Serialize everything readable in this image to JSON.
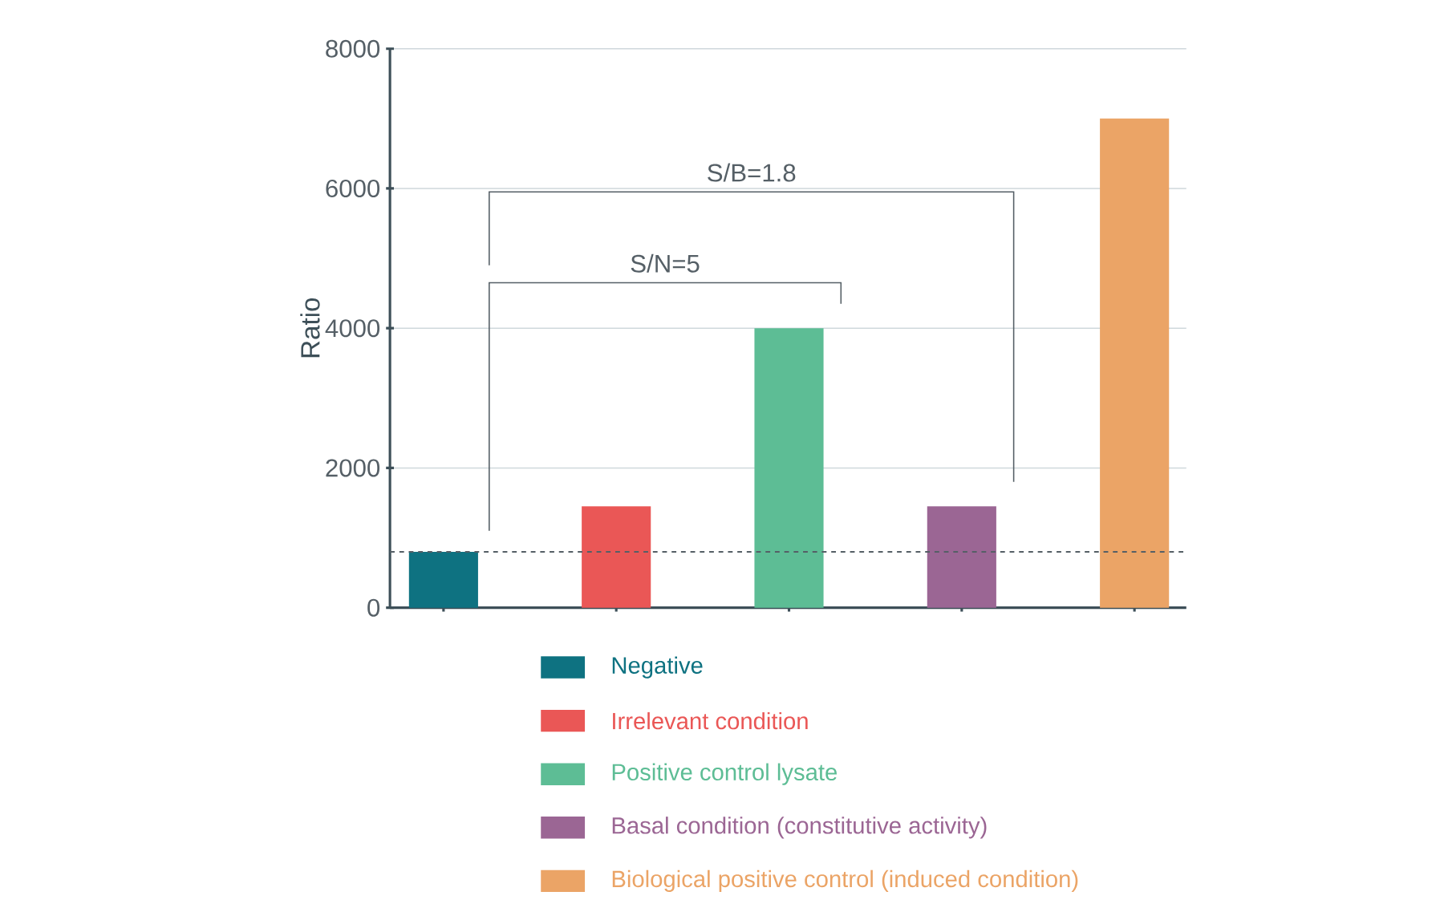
{
  "chart_data": {
    "type": "bar",
    "ylabel": "Ratio",
    "categories": [
      null,
      null,
      null,
      null,
      null
    ],
    "series": [
      {
        "name": "Negative",
        "color": "#0e7281",
        "values": [
          800,
          null,
          null,
          null,
          null
        ]
      },
      {
        "name": "Irrelevant condition",
        "color": "#ea5756",
        "values": [
          null,
          1450,
          null,
          null,
          null
        ]
      },
      {
        "name": "Positive control lysate",
        "color": "#5dbd95",
        "values": [
          null,
          null,
          4000,
          null,
          null
        ]
      },
      {
        "name": "Basal condition (constitutive activity)",
        "color": "#9b6694",
        "values": [
          null,
          null,
          null,
          1450,
          null
        ]
      },
      {
        "name": "Biological positive control (induced condition)",
        "color": "#eba466",
        "values": [
          null,
          null,
          null,
          null,
          7000
        ]
      }
    ],
    "ylim": [
      0,
      8000
    ],
    "yticks": [
      0,
      2000,
      4000,
      6000,
      8000
    ],
    "grid": "y",
    "legend": "bottom",
    "tick_labels": "y",
    "ref_lines": [
      {
        "axis": "y",
        "value": 800,
        "line_style": "dashed",
        "color": "#555f66"
      }
    ],
    "annotations": [
      "S/N=5",
      "S/B=1.8"
    ]
  }
}
